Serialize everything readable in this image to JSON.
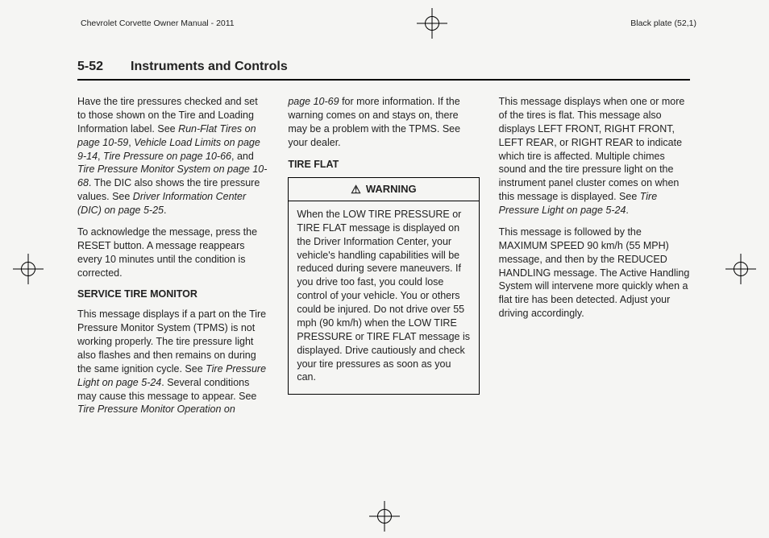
{
  "topbar": {
    "left": "Chevrolet Corvette Owner Manual - 2011",
    "right": "Black plate (52,1)"
  },
  "header": {
    "page_number": "5-52",
    "chapter_title": "Instruments and Controls"
  },
  "col1": {
    "p1a": "Have the tire pressures checked and set to those shown on the Tire and Loading Information label. See ",
    "p1b": "Run-Flat Tires on page 10-59",
    "p1c": ", ",
    "p1d": "Vehicle Load Limits on page 9-14",
    "p1e": ", ",
    "p1f": "Tire Pressure on page 10-66",
    "p1g": ", and ",
    "p1h": "Tire Pressure Monitor System on page 10-68",
    "p1i": ". The DIC also shows the tire pressure values. See ",
    "p1j": "Driver Information Center (DIC) on page 5-25",
    "p1k": ".",
    "p2": "To acknowledge the message, press the RESET button. A message reappears every 10 minutes until the condition is corrected.",
    "h1": "SERVICE TIRE MONITOR",
    "p3a": "This message displays if a part on the Tire Pressure Monitor System (TPMS) is not working properly. The tire pressure light also flashes and then remains on during the same ignition cycle. See ",
    "p3b": "Tire Pressure Light on page 5-24",
    "p3c": ". Several conditions may cause this message to appear. See ",
    "p3d": "Tire Pressure Monitor Operation on"
  },
  "col2": {
    "p1a": "page 10-69",
    "p1b": " for more information. If the warning comes on and stays on, there may be a problem with the TPMS. See your dealer.",
    "h1": "TIRE FLAT",
    "warn_label": "WARNING",
    "warn_body": "When the LOW TIRE PRESSURE or TIRE FLAT message is displayed on the Driver Information Center, your vehicle's handling capabilities will be reduced during severe maneuvers. If you drive too fast, you could lose control of your vehicle. You or others could be injured. Do not drive over 55 mph (90 km/h) when the LOW TIRE PRESSURE or TIRE FLAT message is displayed. Drive cautiously and check your tire pressures as soon as you can."
  },
  "col3": {
    "p1a": "This message displays when one or more of the tires is flat. This message also displays LEFT FRONT, RIGHT FRONT, LEFT REAR, or RIGHT REAR to indicate which tire is affected. Multiple chimes sound and the tire pressure light on the instrument panel cluster comes on when this message is displayed. See ",
    "p1b": "Tire Pressure Light on page 5-24",
    "p1c": ".",
    "p2": "This message is followed by the MAXIMUM SPEED 90 km/h (55 MPH) message, and then by the REDUCED HANDLING message. The Active Handling System will intervene more quickly when a flat tire has been detected. Adjust your driving accordingly."
  }
}
